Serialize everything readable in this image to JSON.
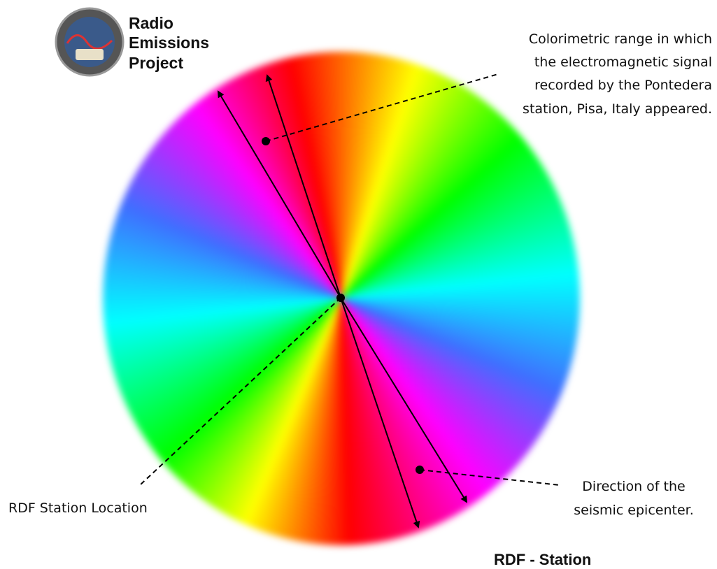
{
  "logo": {
    "lines": [
      "Radio",
      "Emissions",
      "Project"
    ]
  },
  "annotations": {
    "colorimetric": [
      "Colorimetric range in which",
      "the electromagnetic signal",
      "recorded by the Pontedera",
      "station, Pisa, Italy appeared."
    ],
    "station_location": "RDF Station Location",
    "epicenter": [
      "Direction of the",
      "seismic epicenter."
    ]
  },
  "footer": "RDF - Station"
}
